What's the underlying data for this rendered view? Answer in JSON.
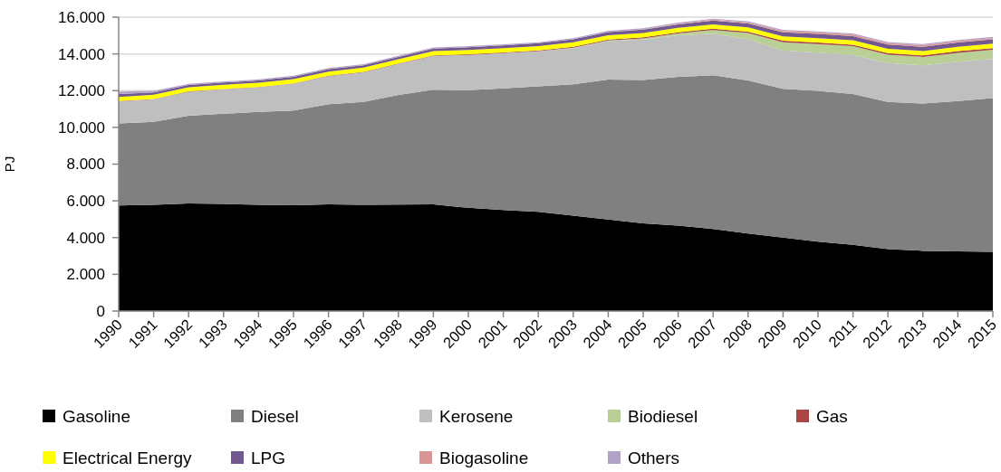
{
  "chart_data": {
    "type": "area",
    "stacked": true,
    "ylabel": "PJ",
    "categories": [
      "1990",
      "1991",
      "1992",
      "1993",
      "1994",
      "1995",
      "1996",
      "1997",
      "1998",
      "1999",
      "2000",
      "2001",
      "2002",
      "2003",
      "2004",
      "2005",
      "2006",
      "2007",
      "2008",
      "2009",
      "2010",
      "2011",
      "2012",
      "2013",
      "2014",
      "2015"
    ],
    "series": [
      {
        "name": "Gasoline",
        "color": "#000000",
        "values": [
          5750,
          5780,
          5860,
          5830,
          5780,
          5760,
          5810,
          5780,
          5800,
          5810,
          5620,
          5500,
          5400,
          5190,
          4990,
          4780,
          4650,
          4470,
          4220,
          4000,
          3780,
          3610,
          3370,
          3280,
          3250,
          3220
        ]
      },
      {
        "name": "Diesel",
        "color": "#808080",
        "values": [
          4460,
          4520,
          4780,
          4910,
          5060,
          5160,
          5450,
          5610,
          5970,
          6240,
          6400,
          6620,
          6830,
          7160,
          7610,
          7800,
          8100,
          8370,
          8330,
          8100,
          8210,
          8210,
          8020,
          8020,
          8190,
          8370
        ]
      },
      {
        "name": "Kerosene",
        "color": "#bfbfbf",
        "values": [
          1200,
          1230,
          1300,
          1330,
          1340,
          1460,
          1530,
          1610,
          1680,
          1840,
          1920,
          1920,
          1920,
          1970,
          2100,
          2200,
          2260,
          2260,
          2260,
          2090,
          2080,
          2120,
          2110,
          2080,
          2140,
          2150
        ]
      },
      {
        "name": "Biodiesel",
        "color": "#b9cf96",
        "values": [
          0,
          0,
          0,
          0,
          0,
          0,
          0,
          0,
          0,
          0,
          0,
          0,
          0,
          20,
          30,
          60,
          110,
          200,
          330,
          450,
          470,
          480,
          460,
          460,
          480,
          490
        ]
      },
      {
        "name": "Gas",
        "color": "#aa4643",
        "values": [
          20,
          20,
          20,
          20,
          20,
          20,
          20,
          20,
          30,
          30,
          40,
          40,
          40,
          50,
          50,
          60,
          60,
          70,
          70,
          80,
          80,
          80,
          80,
          80,
          90,
          90
        ]
      },
      {
        "name": "Electrical Energy",
        "color": "#ffff00",
        "values": [
          230,
          230,
          230,
          230,
          230,
          230,
          230,
          230,
          230,
          230,
          240,
          240,
          240,
          240,
          240,
          240,
          240,
          240,
          240,
          240,
          240,
          240,
          240,
          240,
          240,
          240
        ]
      },
      {
        "name": "LPG",
        "color": "#71588f",
        "values": [
          150,
          120,
          120,
          120,
          120,
          120,
          130,
          130,
          130,
          140,
          140,
          140,
          150,
          160,
          170,
          180,
          190,
          200,
          210,
          220,
          230,
          230,
          230,
          230,
          230,
          230
        ]
      },
      {
        "name": "Biogasoline",
        "color": "#d99694",
        "values": [
          0,
          0,
          0,
          0,
          0,
          0,
          0,
          0,
          0,
          0,
          0,
          0,
          0,
          0,
          10,
          20,
          30,
          50,
          60,
          70,
          80,
          80,
          80,
          80,
          80,
          80
        ]
      },
      {
        "name": "Others",
        "color": "#b3a2c7",
        "values": [
          140,
          90,
          60,
          60,
          60,
          60,
          60,
          60,
          60,
          60,
          60,
          60,
          60,
          60,
          60,
          60,
          60,
          60,
          60,
          60,
          60,
          60,
          60,
          60,
          60,
          60
        ]
      }
    ],
    "ylim": [
      0,
      16000
    ],
    "yticks": [
      0,
      {
        "value": 2000,
        "label": "2.000"
      },
      {
        "value": 4000,
        "label": "4.000"
      },
      {
        "value": 6000,
        "label": "6.000"
      },
      {
        "value": 8000,
        "label": "8.000"
      },
      {
        "value": 10000,
        "label": "10.000"
      },
      {
        "value": 12000,
        "label": "12.000"
      },
      {
        "value": 14000,
        "label": "14.000"
      },
      {
        "value": 16000,
        "label": "16.000"
      }
    ],
    "grid": "y",
    "legend": "bottom"
  }
}
